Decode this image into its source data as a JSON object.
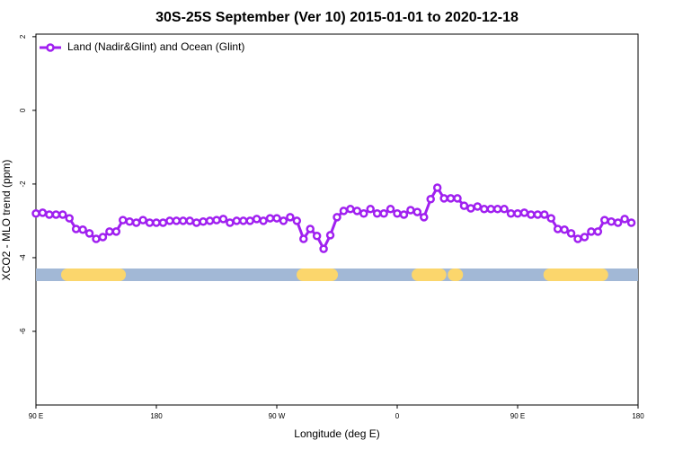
{
  "chart_data": {
    "type": "line",
    "title": "30S-25S September (Ver 10)   2015-01-01 to 2020-12-18",
    "x_label": "Longitude (deg E)",
    "y_label": "XCO2 - MLO trend (ppm)",
    "x": [
      90,
      95,
      100,
      105,
      110,
      115,
      120,
      125,
      130,
      135,
      140,
      145,
      150,
      155,
      160,
      165,
      170,
      175,
      180,
      185,
      190,
      195,
      200,
      205,
      210,
      215,
      220,
      225,
      230,
      235,
      240,
      245,
      250,
      255,
      260,
      265,
      270,
      275,
      280,
      285,
      290,
      295,
      300,
      305,
      310,
      315,
      320,
      325,
      330,
      335,
      340,
      345,
      350,
      355,
      360,
      365,
      370,
      375,
      380,
      385,
      390,
      395,
      400,
      405,
      410,
      415,
      420,
      425,
      430,
      435,
      440,
      445,
      450,
      455,
      460,
      465,
      470,
      475,
      480,
      485,
      490,
      495,
      500,
      505,
      510,
      515,
      520,
      525,
      530,
      535
    ],
    "series": [
      {
        "name": "Land (Nadir&Glint) and Ocean (Glint)",
        "color": "#a020f0",
        "values": [
          -2.8,
          -2.78,
          -2.83,
          -2.83,
          -2.83,
          -2.93,
          -3.22,
          -3.24,
          -3.34,
          -3.49,
          -3.44,
          -3.29,
          -3.29,
          -2.98,
          -3.02,
          -3.05,
          -2.98,
          -3.05,
          -3.05,
          -3.05,
          -3.0,
          -3.0,
          -3.0,
          -3.0,
          -3.05,
          -3.02,
          -3.0,
          -2.98,
          -2.95,
          -3.05,
          -3.0,
          -3.0,
          -3.0,
          -2.95,
          -3.0,
          -2.93,
          -2.93,
          -3.0,
          -2.9,
          -3.0,
          -3.49,
          -3.22,
          -3.41,
          -3.76,
          -3.39,
          -2.9,
          -2.73,
          -2.68,
          -2.73,
          -2.8,
          -2.68,
          -2.8,
          -2.8,
          -2.68,
          -2.8,
          -2.83,
          -2.71,
          -2.76,
          -2.9,
          -2.41,
          -2.1,
          -2.39,
          -2.39,
          -2.39,
          -2.59,
          -2.66,
          -2.61,
          -2.68,
          -2.68,
          -2.68,
          -2.68,
          -2.8,
          -2.8,
          -2.78,
          -2.83,
          -2.83,
          -2.83,
          -2.93,
          -3.22,
          -3.24,
          -3.34,
          -3.49,
          -3.44,
          -3.29,
          -3.29,
          -2.98,
          -3.02,
          -3.05,
          -2.95,
          -3.05
        ]
      }
    ],
    "land_ranges": [
      [
        113.5,
        152.5
      ],
      [
        289.5,
        311
      ],
      [
        375.5,
        392
      ],
      [
        402.5,
        404.5
      ],
      [
        474,
        513
      ]
    ],
    "xlim": [
      90,
      540
    ],
    "xticks": [
      {
        "value": 90,
        "label": "90 E"
      },
      180,
      {
        "value": 270,
        "label": "90 W"
      },
      {
        "value": 360,
        "label": "0"
      },
      {
        "value": 450,
        "label": "90 E"
      },
      {
        "value": 540,
        "label": "180"
      }
    ],
    "ylim": [
      -8,
      2.07
    ],
    "yticks": [
      2,
      0,
      -2,
      -4,
      -6
    ],
    "legend": "top-left"
  }
}
